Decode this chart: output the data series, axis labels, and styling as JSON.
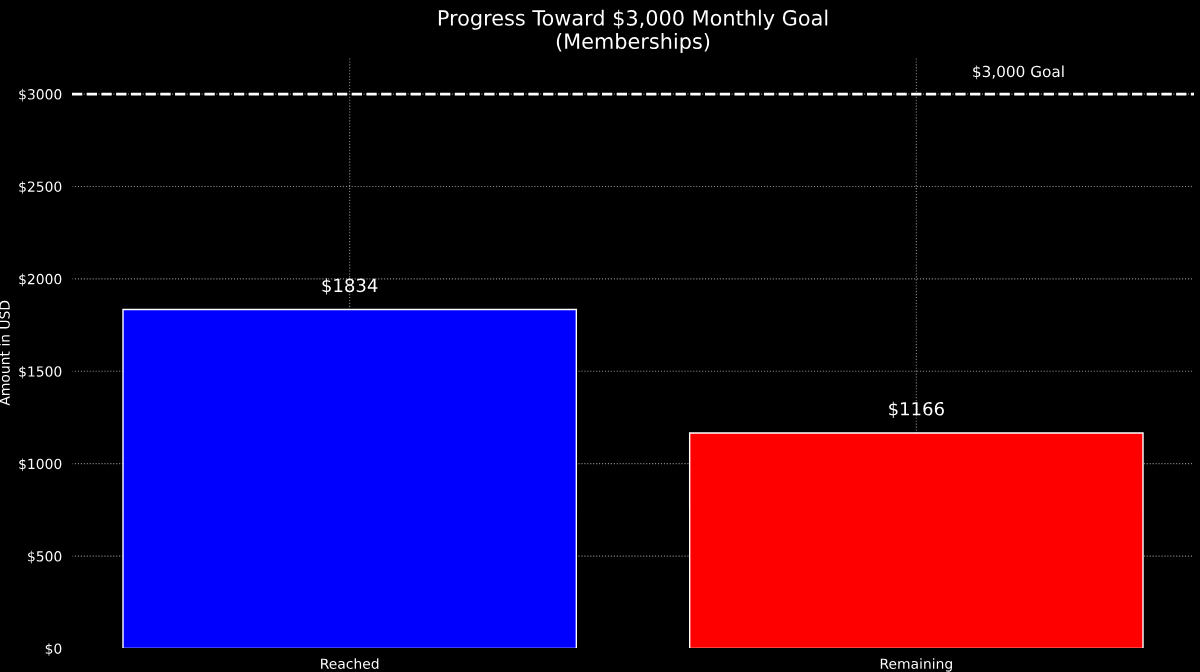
{
  "chart_data": {
    "type": "bar",
    "title": "Progress Toward $3,000 Monthly Goal\n(Memberships)",
    "ylabel": "Amount in USD",
    "categories": [
      "Reached",
      "Remaining"
    ],
    "values": [
      1834,
      1166
    ],
    "colors": [
      "#0000ff",
      "#ff0000"
    ],
    "value_labels": [
      "$1834",
      "$1166"
    ],
    "ylim": [
      0,
      3200
    ],
    "yticks": [
      {
        "value": 0,
        "label": "$0"
      },
      {
        "value": 500,
        "label": "$500"
      },
      {
        "value": 1000,
        "label": "$1000"
      },
      {
        "value": 1500,
        "label": "$1500"
      },
      {
        "value": 2000,
        "label": "$2000"
      },
      {
        "value": 2500,
        "label": "$2500"
      },
      {
        "value": 3000,
        "label": "$3000"
      }
    ],
    "ref_lines": [
      {
        "axis": "y",
        "value": 3000,
        "label": "$3,000 Goal",
        "color": "#ffffff",
        "line_style": "dashed"
      }
    ],
    "grid": true
  }
}
